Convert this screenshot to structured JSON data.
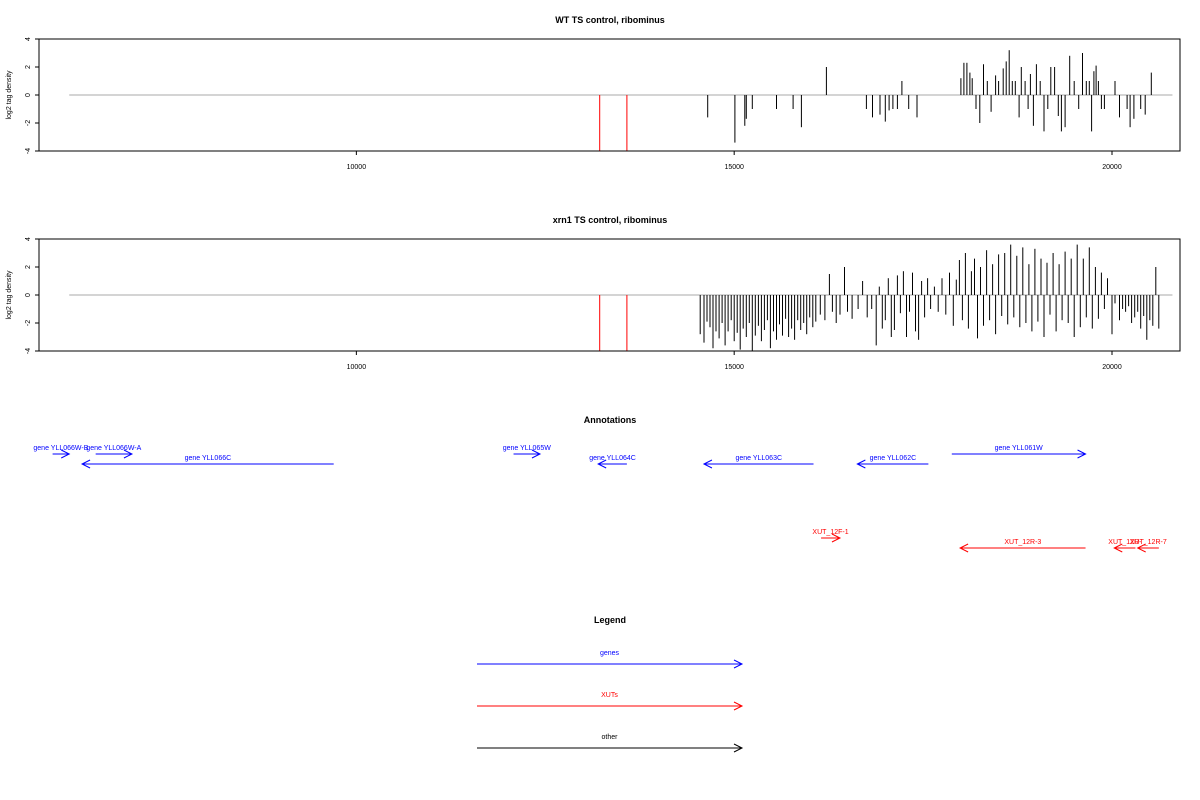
{
  "chart_data": [
    {
      "type": "bar",
      "title": "WT TS control, ribominus",
      "ylabel": "log2 tag density",
      "xlim": [
        5800,
        20900
      ],
      "ylim": [
        -4,
        4
      ],
      "x_ticks": [
        10000,
        15000,
        20000
      ],
      "y_ticks": [
        -4,
        -2,
        0,
        2,
        4
      ],
      "baseline": {
        "from": 6200,
        "to": 20800,
        "color": "#aaaaaa"
      },
      "series": [
        {
          "color": "#ff0000",
          "values": [
            [
              13220,
              -4.2
            ],
            [
              13580,
              -4.2
            ]
          ]
        },
        {
          "color": "#000000",
          "values": [
            [
              14650,
              -1.6
            ],
            [
              15010,
              -3.4
            ],
            [
              15140,
              -2.2
            ],
            [
              15160,
              -1.7
            ],
            [
              15240,
              -1.0
            ],
            [
              15560,
              -1.0
            ],
            [
              15780,
              -1.0
            ],
            [
              15890,
              -2.3
            ],
            [
              16220,
              2.0
            ],
            [
              16750,
              -1.0
            ],
            [
              16830,
              -1.6
            ],
            [
              16930,
              -1.4
            ],
            [
              17000,
              -1.9
            ],
            [
              17050,
              -1.1
            ],
            [
              17100,
              -1.0
            ],
            [
              17160,
              -1.0
            ],
            [
              17220,
              1.0
            ],
            [
              17310,
              -1.0
            ],
            [
              17420,
              -1.6
            ],
            [
              18000,
              1.2
            ],
            [
              18040,
              2.3
            ],
            [
              18080,
              2.3
            ],
            [
              18120,
              1.6
            ],
            [
              18150,
              1.2
            ],
            [
              18200,
              -1.0
            ],
            [
              18250,
              -2.0
            ],
            [
              18300,
              2.2
            ],
            [
              18350,
              1.0
            ],
            [
              18400,
              -1.2
            ],
            [
              18460,
              1.4
            ],
            [
              18500,
              1.0
            ],
            [
              18560,
              1.9
            ],
            [
              18600,
              2.4
            ],
            [
              18640,
              3.2
            ],
            [
              18680,
              1.0
            ],
            [
              18720,
              1.0
            ],
            [
              18770,
              -1.6
            ],
            [
              18800,
              2.0
            ],
            [
              18850,
              1.0
            ],
            [
              18890,
              -1.0
            ],
            [
              18920,
              1.5
            ],
            [
              18960,
              -2.2
            ],
            [
              19000,
              2.2
            ],
            [
              19050,
              1.0
            ],
            [
              19100,
              -2.6
            ],
            [
              19150,
              -1.0
            ],
            [
              19190,
              2.0
            ],
            [
              19240,
              2.0
            ],
            [
              19290,
              -1.5
            ],
            [
              19330,
              -2.6
            ],
            [
              19380,
              -2.3
            ],
            [
              19440,
              2.8
            ],
            [
              19500,
              1.0
            ],
            [
              19560,
              -1.0
            ],
            [
              19610,
              3.0
            ],
            [
              19660,
              1.0
            ],
            [
              19700,
              1.0
            ],
            [
              19730,
              -2.6
            ],
            [
              19760,
              1.7
            ],
            [
              19790,
              2.1
            ],
            [
              19820,
              1.0
            ],
            [
              19860,
              -1.0
            ],
            [
              19900,
              -1.0
            ],
            [
              20040,
              1.0
            ],
            [
              20100,
              -1.6
            ],
            [
              20200,
              -1.0
            ],
            [
              20240,
              -2.3
            ],
            [
              20290,
              -1.7
            ],
            [
              20380,
              -1.0
            ],
            [
              20440,
              -1.4
            ],
            [
              20520,
              1.6
            ]
          ]
        }
      ]
    },
    {
      "type": "bar",
      "title": "xrn1 TS control, ribominus",
      "ylabel": "log2 tag density",
      "xlim": [
        5800,
        20900
      ],
      "ylim": [
        -4,
        4
      ],
      "x_ticks": [
        10000,
        15000,
        20000
      ],
      "y_ticks": [
        -4,
        -2,
        0,
        2,
        4
      ],
      "baseline": {
        "from": 6200,
        "to": 20800,
        "color": "#aaaaaa"
      },
      "series": [
        {
          "color": "#ff0000",
          "values": [
            [
              13220,
              -4.2
            ],
            [
              13580,
              -4.2
            ]
          ]
        },
        {
          "color": "#000000",
          "values": [
            [
              14550,
              -2.8
            ],
            [
              14600,
              -3.4
            ],
            [
              14640,
              -1.9
            ],
            [
              14680,
              -2.3
            ],
            [
              14720,
              -3.8
            ],
            [
              14760,
              -2.6
            ],
            [
              14800,
              -3.1
            ],
            [
              14840,
              -2.0
            ],
            [
              14880,
              -3.6
            ],
            [
              14920,
              -2.6
            ],
            [
              14960,
              -1.8
            ],
            [
              15000,
              -3.3
            ],
            [
              15040,
              -2.7
            ],
            [
              15080,
              -3.9
            ],
            [
              15120,
              -2.4
            ],
            [
              15160,
              -3.0
            ],
            [
              15200,
              -2.0
            ],
            [
              15240,
              -4.0
            ],
            [
              15280,
              -2.9
            ],
            [
              15320,
              -2.2
            ],
            [
              15360,
              -3.3
            ],
            [
              15400,
              -2.5
            ],
            [
              15440,
              -1.8
            ],
            [
              15480,
              -3.8
            ],
            [
              15520,
              -2.6
            ],
            [
              15560,
              -3.2
            ],
            [
              15600,
              -2.1
            ],
            [
              15640,
              -2.9
            ],
            [
              15680,
              -1.7
            ],
            [
              15720,
              -3.0
            ],
            [
              15760,
              -2.4
            ],
            [
              15800,
              -3.2
            ],
            [
              15840,
              -1.8
            ],
            [
              15880,
              -2.5
            ],
            [
              15920,
              -2.0
            ],
            [
              15960,
              -2.8
            ],
            [
              16000,
              -1.6
            ],
            [
              16040,
              -2.3
            ],
            [
              16080,
              -1.9
            ],
            [
              16140,
              -1.4
            ],
            [
              16200,
              -1.8
            ],
            [
              16260,
              1.5
            ],
            [
              16300,
              -1.2
            ],
            [
              16350,
              -2.0
            ],
            [
              16400,
              -1.4
            ],
            [
              16460,
              2.0
            ],
            [
              16500,
              -1.2
            ],
            [
              16560,
              -1.7
            ],
            [
              16640,
              -1.0
            ],
            [
              16700,
              1.0
            ],
            [
              16760,
              -1.6
            ],
            [
              16820,
              -1.0
            ],
            [
              16880,
              -3.6
            ],
            [
              16920,
              0.6
            ],
            [
              16960,
              -2.4
            ],
            [
              17000,
              -1.8
            ],
            [
              17040,
              1.2
            ],
            [
              17080,
              -3.0
            ],
            [
              17120,
              -2.5
            ],
            [
              17160,
              1.4
            ],
            [
              17200,
              -1.3
            ],
            [
              17240,
              1.7
            ],
            [
              17280,
              -3.0
            ],
            [
              17320,
              -1.2
            ],
            [
              17360,
              1.6
            ],
            [
              17400,
              -2.6
            ],
            [
              17440,
              -3.2
            ],
            [
              17480,
              1.0
            ],
            [
              17520,
              -1.6
            ],
            [
              17560,
              1.2
            ],
            [
              17600,
              -1.0
            ],
            [
              17650,
              0.6
            ],
            [
              17700,
              -1.2
            ],
            [
              17750,
              1.2
            ],
            [
              17800,
              -1.4
            ],
            [
              17850,
              1.6
            ],
            [
              17900,
              -2.2
            ],
            [
              17940,
              1.1
            ],
            [
              17980,
              2.5
            ],
            [
              18020,
              -1.8
            ],
            [
              18060,
              3.0
            ],
            [
              18100,
              -2.4
            ],
            [
              18140,
              1.7
            ],
            [
              18180,
              2.6
            ],
            [
              18220,
              -3.1
            ],
            [
              18260,
              2.0
            ],
            [
              18300,
              -2.2
            ],
            [
              18340,
              3.2
            ],
            [
              18380,
              -1.8
            ],
            [
              18420,
              2.2
            ],
            [
              18460,
              -2.8
            ],
            [
              18500,
              2.9
            ],
            [
              18540,
              -1.5
            ],
            [
              18580,
              3.0
            ],
            [
              18620,
              -2.1
            ],
            [
              18660,
              3.6
            ],
            [
              18700,
              -1.6
            ],
            [
              18740,
              2.8
            ],
            [
              18780,
              -2.3
            ],
            [
              18820,
              3.4
            ],
            [
              18860,
              -2.0
            ],
            [
              18900,
              2.2
            ],
            [
              18940,
              -2.6
            ],
            [
              18980,
              3.3
            ],
            [
              19020,
              -1.9
            ],
            [
              19060,
              2.6
            ],
            [
              19100,
              -3.0
            ],
            [
              19140,
              2.3
            ],
            [
              19180,
              -1.4
            ],
            [
              19220,
              3.0
            ],
            [
              19260,
              -2.6
            ],
            [
              19300,
              2.2
            ],
            [
              19340,
              -1.8
            ],
            [
              19380,
              3.1
            ],
            [
              19420,
              -2.0
            ],
            [
              19460,
              2.6
            ],
            [
              19500,
              -3.0
            ],
            [
              19540,
              3.6
            ],
            [
              19580,
              -2.3
            ],
            [
              19620,
              2.6
            ],
            [
              19660,
              -1.6
            ],
            [
              19700,
              3.4
            ],
            [
              19740,
              -2.4
            ],
            [
              19780,
              2.0
            ],
            [
              19820,
              -1.7
            ],
            [
              19860,
              1.6
            ],
            [
              19900,
              -1.0
            ],
            [
              19940,
              1.2
            ],
            [
              20000,
              -2.8
            ],
            [
              20040,
              -0.6
            ],
            [
              20100,
              -1.8
            ],
            [
              20140,
              -1.0
            ],
            [
              20180,
              -1.2
            ],
            [
              20220,
              -0.8
            ],
            [
              20260,
              -2.0
            ],
            [
              20300,
              -1.6
            ],
            [
              20340,
              -1.2
            ],
            [
              20380,
              -2.4
            ],
            [
              20420,
              -1.5
            ],
            [
              20460,
              -3.2
            ],
            [
              20500,
              -1.8
            ],
            [
              20540,
              -2.2
            ],
            [
              20580,
              2.0
            ],
            [
              20620,
              -2.4
            ]
          ]
        }
      ]
    }
  ],
  "annotations": {
    "title": "Annotations",
    "items": [
      {
        "label": "gene YLL066W-B",
        "color": "#0000ff",
        "from": 5980,
        "to": 6200,
        "row": 1
      },
      {
        "label": "gene YLL066W-A",
        "color": "#0000ff",
        "from": 6550,
        "to": 7030,
        "row": 1
      },
      {
        "label": "gene YLL066C",
        "color": "#0000ff",
        "from": 9700,
        "to": 6370,
        "row": 2
      },
      {
        "label": "gene YLL065W",
        "color": "#0000ff",
        "from": 12080,
        "to": 12430,
        "row": 1
      },
      {
        "label": "gene YLL064C",
        "color": "#0000ff",
        "from": 13580,
        "to": 13200,
        "row": 2
      },
      {
        "label": "gene YLL063C",
        "color": "#0000ff",
        "from": 16050,
        "to": 14600,
        "row": 2
      },
      {
        "label": "gene YLL062C",
        "color": "#0000ff",
        "from": 17570,
        "to": 16630,
        "row": 2
      },
      {
        "label": "gene YLL061W",
        "color": "#0000ff",
        "from": 17880,
        "to": 19650,
        "row": 1
      },
      {
        "label": "XUT_12F-1",
        "color": "#ff0000",
        "from": 16150,
        "to": 16400,
        "row": 3
      },
      {
        "label": "XUT_12R-3",
        "color": "#ff0000",
        "from": 19650,
        "to": 17990,
        "row": 4
      },
      {
        "label": "XUT_12R-",
        "color": "#ff0000",
        "from": 20310,
        "to": 20030,
        "row": 4
      },
      {
        "label": "XUT_12R-7",
        "color": "#ff0000",
        "from": 20620,
        "to": 20340,
        "row": 4
      }
    ]
  },
  "legend": {
    "title": "Legend",
    "items": [
      {
        "label": "genes",
        "color": "#0000ff"
      },
      {
        "label": "XUTs",
        "color": "#ff0000"
      },
      {
        "label": "other",
        "color": "#000000"
      }
    ]
  }
}
